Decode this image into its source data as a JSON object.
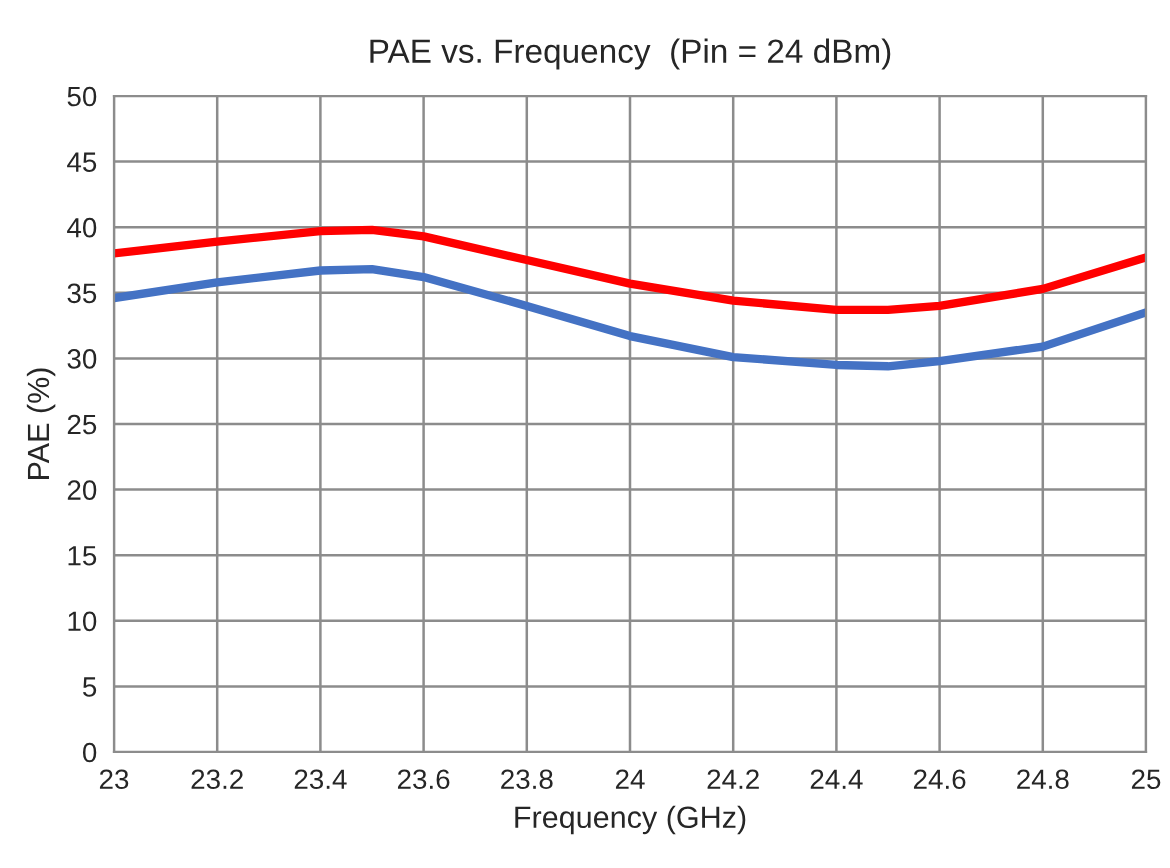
{
  "chart_data": {
    "type": "line",
    "title": "PAE vs. Frequency  (Pin = 24 dBm)",
    "xlabel": "Frequency (GHz)",
    "ylabel": "PAE (%)",
    "x": [
      23,
      23.2,
      23.4,
      23.5,
      23.6,
      23.8,
      24,
      24.2,
      24.4,
      24.5,
      24.6,
      24.8,
      25
    ],
    "series": [
      {
        "color": "#ff0000",
        "values": [
          38.0,
          38.9,
          39.7,
          39.8,
          39.3,
          37.5,
          35.7,
          34.4,
          33.7,
          33.7,
          34.0,
          35.3,
          37.7
        ]
      },
      {
        "color": "#4472c4",
        "values": [
          34.6,
          35.8,
          36.7,
          36.8,
          36.2,
          34.0,
          31.7,
          30.1,
          29.5,
          29.4,
          29.8,
          30.9,
          33.5
        ]
      }
    ],
    "xlim": [
      23,
      25
    ],
    "xticks": [
      23,
      23.2,
      23.4,
      23.6,
      23.8,
      24,
      24.2,
      24.4,
      24.6,
      24.8,
      25
    ],
    "ylim": [
      0,
      50
    ],
    "yticks": [
      0,
      5,
      10,
      15,
      20,
      25,
      30,
      35,
      40,
      45,
      50
    ],
    "grid": true,
    "marker": "none",
    "line_style": "solid"
  }
}
